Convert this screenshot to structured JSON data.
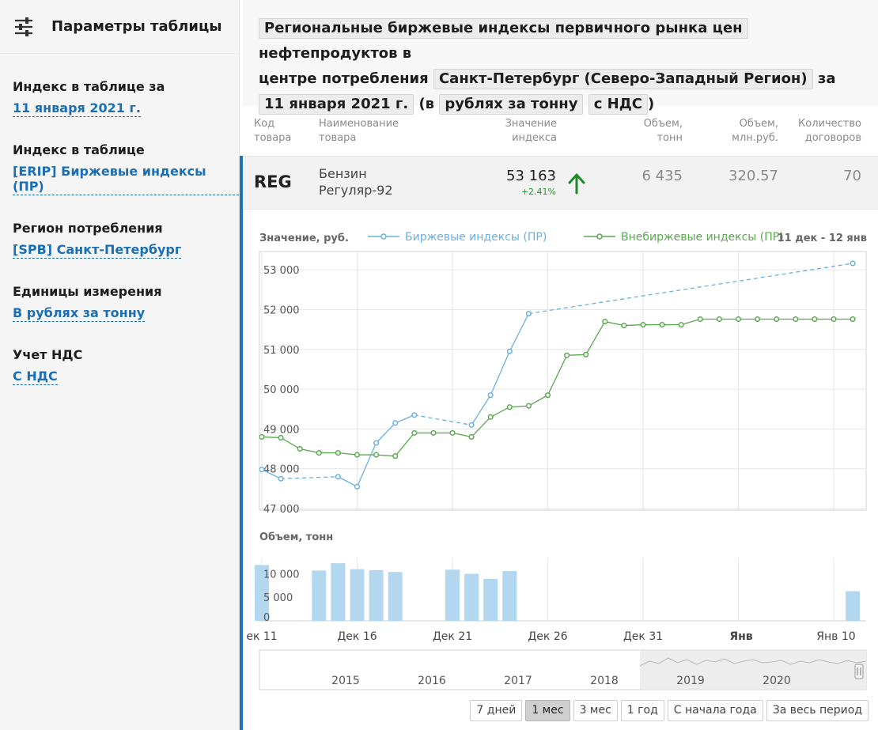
{
  "sidebar": {
    "title": "Параметры таблицы",
    "params": [
      {
        "label": "Индекс в таблице за",
        "value": "11 января 2021 г."
      },
      {
        "label": "Индекс в таблице",
        "value": "[ERIP] Биржевые индексы (ПР)"
      },
      {
        "label": "Регион потребления",
        "value": "[SPB] Санкт-Петербург"
      },
      {
        "label": "Единицы измерения",
        "value": "В рублях за тонну"
      },
      {
        "label": "Учет НДС",
        "value": "С НДС"
      }
    ]
  },
  "header": {
    "index_chip": "Региональные биржевые индексы первичного рынка цен",
    "text1": "нефтепродуктов в",
    "text2": "центре потребления",
    "region_chip": "Санкт-Петербург (Северо-Западный Регион)",
    "text3": "за",
    "date_chip": "11 января 2021 г.",
    "text4": "(в",
    "units_chip": "рублях за тонну",
    "vat_chip": "с НДС",
    "text5": ")"
  },
  "table": {
    "col_code": [
      "Код",
      "товара"
    ],
    "col_name": [
      "Наименование",
      "товара"
    ],
    "col_value": [
      "Значение",
      "индекса"
    ],
    "col_vol_t": [
      "Объем,",
      "тонн"
    ],
    "col_vol_rub": [
      "Объем,",
      "млн.руб."
    ],
    "col_count": [
      "Количество",
      "договоров"
    ],
    "row": {
      "code": "REG",
      "name_line1": "Бензин",
      "name_line2": "Регуляр-92",
      "value": "53 163",
      "change": "+2.41%",
      "volume_t": "6 435",
      "volume_rub": "320.57",
      "count": "70"
    }
  },
  "colors": {
    "exchange": "#6ab0de",
    "otc": "#5aa84f",
    "volume": "#b2d7ee",
    "accent": "#1f76b4",
    "up": "#1d8a2a"
  },
  "chart_data": [
    {
      "type": "line",
      "title": "Значение, руб.",
      "range_label": "11 дек - 12 янв",
      "ylabel": "",
      "ylim": [
        47000,
        53500
      ],
      "yticks": [
        "47 000",
        "48 000",
        "49 000",
        "50 000",
        "51 000",
        "52 000",
        "53 000"
      ],
      "xticks": [
        "ек 11",
        "Дек 16",
        "Дек 21",
        "Дек 26",
        "Дек 31",
        "Янв",
        "Янв 10"
      ],
      "legend_position": "top",
      "series": [
        {
          "name": "Биржевые индексы (ПР)",
          "x": [
            "2020-12-11",
            "2020-12-12",
            "2020-12-15",
            "2020-12-16",
            "2020-12-17",
            "2020-12-18",
            "2020-12-19",
            "2020-12-22",
            "2020-12-23",
            "2020-12-24",
            "2020-12-25",
            "2021-01-11"
          ],
          "y": [
            47980,
            47750,
            47800,
            47550,
            48650,
            49150,
            49350,
            49100,
            49850,
            50950,
            51900,
            53163
          ]
        },
        {
          "name": "Внебиржевые индексы (ПР)",
          "x": [
            "2020-12-11",
            "2020-12-12",
            "2020-12-13",
            "2020-12-14",
            "2020-12-15",
            "2020-12-16",
            "2020-12-17",
            "2020-12-18",
            "2020-12-19",
            "2020-12-20",
            "2020-12-21",
            "2020-12-22",
            "2020-12-23",
            "2020-12-24",
            "2020-12-25",
            "2020-12-26",
            "2020-12-27",
            "2020-12-28",
            "2020-12-29",
            "2020-12-30",
            "2020-12-31",
            "2021-01-01",
            "2021-01-02",
            "2021-01-03",
            "2021-01-04",
            "2021-01-05",
            "2021-01-06",
            "2021-01-07",
            "2021-01-08",
            "2021-01-09",
            "2021-01-10",
            "2021-01-11"
          ],
          "y": [
            48800,
            48780,
            48500,
            48400,
            48400,
            48350,
            48350,
            48320,
            48900,
            48900,
            48900,
            48800,
            49300,
            49550,
            49580,
            49850,
            50850,
            50870,
            51700,
            51600,
            51620,
            51620,
            51620,
            51760,
            51760,
            51760,
            51760,
            51760,
            51760,
            51760,
            51760,
            51760
          ]
        }
      ]
    },
    {
      "type": "bar",
      "title": "Объем, тонн",
      "ylim": [
        0,
        12000
      ],
      "yticks": [
        "0",
        "5 000",
        "10 000"
      ],
      "x": [
        "2020-12-11",
        "2020-12-14",
        "2020-12-15",
        "2020-12-16",
        "2020-12-17",
        "2020-12-18",
        "2020-12-21",
        "2020-12-22",
        "2020-12-23",
        "2020-12-24",
        "2021-01-11"
      ],
      "values": [
        12100,
        10900,
        12500,
        11200,
        11000,
        10600,
        11100,
        10200,
        9100,
        10800,
        6435
      ]
    }
  ],
  "navigator": {
    "years": [
      "2015",
      "2016",
      "2017",
      "2018",
      "2019",
      "2020"
    ]
  },
  "ranges": [
    "7 дней",
    "1 мес",
    "3 мес",
    "1 год",
    "С начала года",
    "За весь период"
  ],
  "selected_range": "1 мес",
  "icons": {
    "settings": "sliders-icon",
    "trend": "arrow-up-icon"
  }
}
